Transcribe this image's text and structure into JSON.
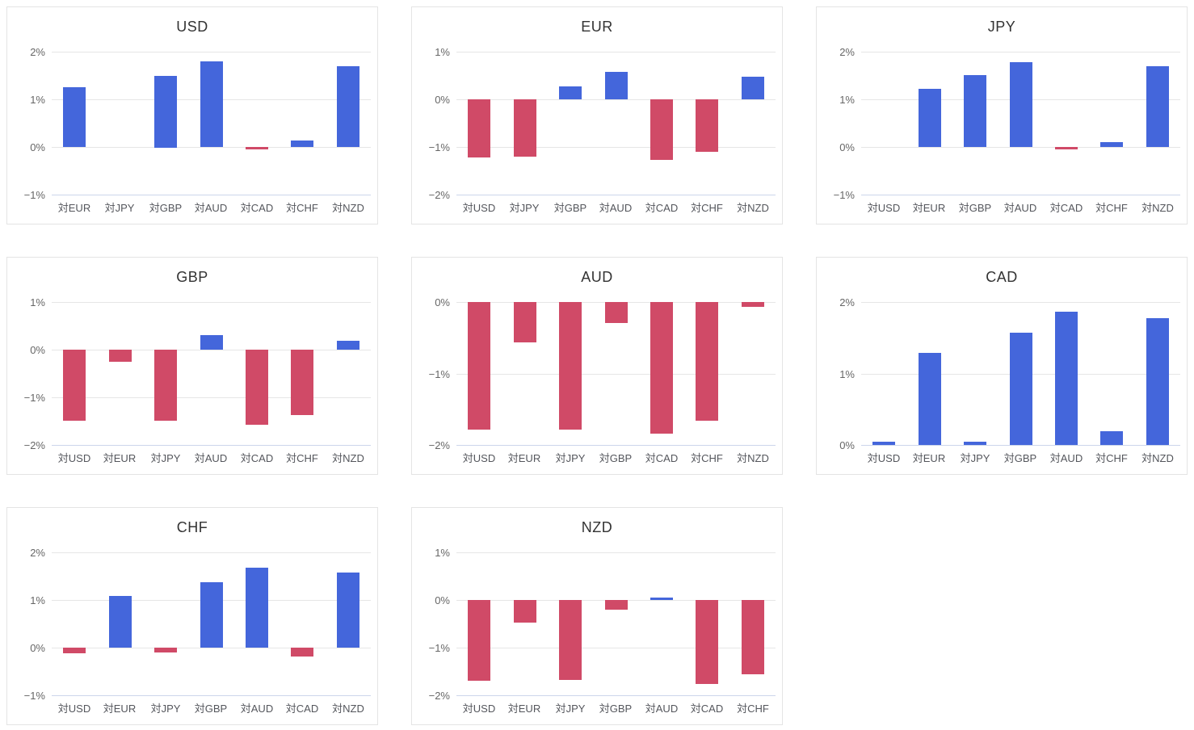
{
  "page": {
    "background": "#ffffff",
    "description": "Currency cross-rate daily change grid of bar charts"
  },
  "style": {
    "positive_bar_color": "#4466db",
    "negative_bar_color": "#d04a67",
    "grid_color": "#e6e6e6",
    "axis_line_color": "#ccd6eb",
    "title_color": "#333333",
    "ytick_color": "#666666",
    "xtick_color": "#54565c",
    "panel_border_color": "#e4e4e4"
  },
  "chart_data": [
    {
      "type": "bar",
      "title": "USD",
      "categories": [
        "対EUR",
        "対JPY",
        "対GBP",
        "対AUD",
        "対CAD",
        "対CHF",
        "対NZD"
      ],
      "values": [
        1.25,
        0.0,
        1.5,
        1.8,
        -0.05,
        0.13,
        1.7
      ],
      "ylim": [
        -1,
        2
      ],
      "yticks": [
        {
          "v": -1,
          "label": "−1%"
        },
        {
          "v": 0,
          "label": "0%"
        },
        {
          "v": 1,
          "label": "1%"
        },
        {
          "v": 2,
          "label": "2%"
        }
      ],
      "grid": true,
      "legend": "none"
    },
    {
      "type": "bar",
      "title": "EUR",
      "categories": [
        "対USD",
        "対JPY",
        "対GBP",
        "対AUD",
        "対CAD",
        "対CHF",
        "対NZD"
      ],
      "values": [
        -1.22,
        -1.2,
        0.27,
        0.57,
        -1.27,
        -1.1,
        0.47
      ],
      "ylim": [
        -2,
        1
      ],
      "yticks": [
        {
          "v": -2,
          "label": "−2%"
        },
        {
          "v": -1,
          "label": "−1%"
        },
        {
          "v": 0,
          "label": "0%"
        },
        {
          "v": 1,
          "label": "1%"
        }
      ],
      "grid": true,
      "legend": "none"
    },
    {
      "type": "bar",
      "title": "JPY",
      "categories": [
        "対USD",
        "対EUR",
        "対GBP",
        "対AUD",
        "対CAD",
        "対CHF",
        "対NZD"
      ],
      "values": [
        0.0,
        1.22,
        1.51,
        1.78,
        -0.05,
        0.11,
        1.69
      ],
      "ylim": [
        -1,
        2
      ],
      "yticks": [
        {
          "v": -1,
          "label": "−1%"
        },
        {
          "v": 0,
          "label": "0%"
        },
        {
          "v": 1,
          "label": "1%"
        },
        {
          "v": 2,
          "label": "2%"
        }
      ],
      "grid": true,
      "legend": "none"
    },
    {
      "type": "bar",
      "title": "GBP",
      "categories": [
        "対USD",
        "対EUR",
        "対JPY",
        "対AUD",
        "対CAD",
        "対CHF",
        "対NZD"
      ],
      "values": [
        -1.49,
        -0.26,
        -1.49,
        0.3,
        -1.57,
        -1.37,
        0.19
      ],
      "ylim": [
        -2,
        1
      ],
      "yticks": [
        {
          "v": -2,
          "label": "−2%"
        },
        {
          "v": -1,
          "label": "−1%"
        },
        {
          "v": 0,
          "label": "0%"
        },
        {
          "v": 1,
          "label": "1%"
        }
      ],
      "grid": true,
      "legend": "none"
    },
    {
      "type": "bar",
      "title": "AUD",
      "categories": [
        "対USD",
        "対EUR",
        "対JPY",
        "対GBP",
        "対CAD",
        "対CHF",
        "対NZD"
      ],
      "values": [
        -1.78,
        -0.57,
        -1.78,
        -0.29,
        -1.84,
        -1.66,
        -0.07
      ],
      "ylim": [
        -2,
        0
      ],
      "yticks": [
        {
          "v": -2,
          "label": "−2%"
        },
        {
          "v": -1,
          "label": "−1%"
        },
        {
          "v": 0,
          "label": "0%"
        }
      ],
      "grid": true,
      "legend": "none"
    },
    {
      "type": "bar",
      "title": "CAD",
      "categories": [
        "対USD",
        "対EUR",
        "対JPY",
        "対GBP",
        "対AUD",
        "対CHF",
        "対NZD"
      ],
      "values": [
        0.05,
        1.29,
        0.05,
        1.57,
        1.86,
        0.19,
        1.77
      ],
      "ylim": [
        0,
        2
      ],
      "yticks": [
        {
          "v": 0,
          "label": "0%"
        },
        {
          "v": 1,
          "label": "1%"
        },
        {
          "v": 2,
          "label": "2%"
        }
      ],
      "grid": true,
      "legend": "none"
    },
    {
      "type": "bar",
      "title": "CHF",
      "categories": [
        "対USD",
        "対EUR",
        "対JPY",
        "対GBP",
        "対AUD",
        "対CAD",
        "対NZD"
      ],
      "values": [
        -0.12,
        1.08,
        -0.1,
        1.38,
        1.67,
        -0.18,
        1.58
      ],
      "ylim": [
        -1,
        2
      ],
      "yticks": [
        {
          "v": -1,
          "label": "−1%"
        },
        {
          "v": 0,
          "label": "0%"
        },
        {
          "v": 1,
          "label": "1%"
        },
        {
          "v": 2,
          "label": "2%"
        }
      ],
      "grid": true,
      "legend": "none"
    },
    {
      "type": "bar",
      "title": "NZD",
      "categories": [
        "対USD",
        "対EUR",
        "対JPY",
        "対GBP",
        "対AUD",
        "対CAD",
        "対CHF"
      ],
      "values": [
        -1.7,
        -0.47,
        -1.68,
        -0.2,
        0.05,
        -1.76,
        -1.56
      ],
      "ylim": [
        -2,
        1
      ],
      "yticks": [
        {
          "v": -2,
          "label": "−2%"
        },
        {
          "v": -1,
          "label": "−1%"
        },
        {
          "v": 0,
          "label": "0%"
        },
        {
          "v": 1,
          "label": "1%"
        }
      ],
      "grid": true,
      "legend": "none"
    }
  ]
}
